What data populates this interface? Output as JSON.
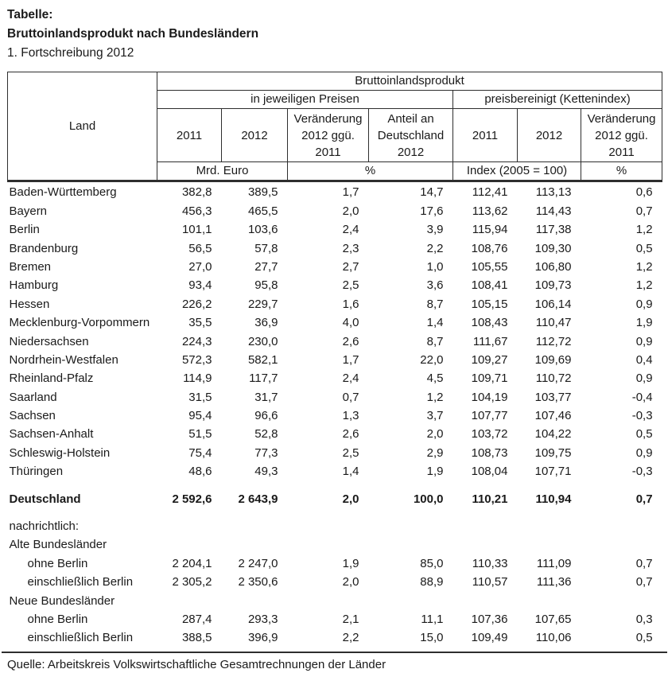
{
  "page": {
    "title_label": "Tabelle:",
    "title": "Bruttoinlandsprodukt nach Bundesländern",
    "subtitle": "1. Fortschreibung 2012",
    "source": "Quelle: Arbeitskreis Volkswirtschaftliche Gesamtrechnungen der Länder"
  },
  "table": {
    "header": {
      "land": "Land",
      "group": "Bruttoinlandsprodukt",
      "subgroup_left": "in jeweiligen Preisen",
      "subgroup_right": "preisbereinigt (Kettenindex)",
      "cols": [
        "2011",
        "2012",
        "Veränderung 2012 ggü. 2011",
        "Anteil an Deutschland 2012",
        "2011",
        "2012",
        "Veränderung 2012 ggü. 2011"
      ],
      "units": [
        "Mrd.  Euro",
        "%",
        "Index (2005 = 100)",
        "%"
      ]
    },
    "rows": [
      {
        "label": "Baden-Württemberg",
        "values": [
          "382,8",
          "389,5",
          "1,7",
          "14,7",
          "112,41",
          "113,13",
          "0,6"
        ]
      },
      {
        "label": "Bayern",
        "values": [
          "456,3",
          "465,5",
          "2,0",
          "17,6",
          "113,62",
          "114,43",
          "0,7"
        ]
      },
      {
        "label": "Berlin",
        "values": [
          "101,1",
          "103,6",
          "2,4",
          "3,9",
          "115,94",
          "117,38",
          "1,2"
        ]
      },
      {
        "label": "Brandenburg",
        "values": [
          "56,5",
          "57,8",
          "2,3",
          "2,2",
          "108,76",
          "109,30",
          "0,5"
        ]
      },
      {
        "label": "Bremen",
        "values": [
          "27,0",
          "27,7",
          "2,7",
          "1,0",
          "105,55",
          "106,80",
          "1,2"
        ]
      },
      {
        "label": "Hamburg",
        "values": [
          "93,4",
          "95,8",
          "2,5",
          "3,6",
          "108,41",
          "109,73",
          "1,2"
        ]
      },
      {
        "label": "Hessen",
        "values": [
          "226,2",
          "229,7",
          "1,6",
          "8,7",
          "105,15",
          "106,14",
          "0,9"
        ]
      },
      {
        "label": "Mecklenburg-Vorpommern",
        "values": [
          "35,5",
          "36,9",
          "4,0",
          "1,4",
          "108,43",
          "110,47",
          "1,9"
        ]
      },
      {
        "label": "Niedersachsen",
        "values": [
          "224,3",
          "230,0",
          "2,6",
          "8,7",
          "111,67",
          "112,72",
          "0,9"
        ]
      },
      {
        "label": "Nordrhein-Westfalen",
        "values": [
          "572,3",
          "582,1",
          "1,7",
          "22,0",
          "109,27",
          "109,69",
          "0,4"
        ]
      },
      {
        "label": "Rheinland-Pfalz",
        "values": [
          "114,9",
          "117,7",
          "2,4",
          "4,5",
          "109,71",
          "110,72",
          "0,9"
        ]
      },
      {
        "label": "Saarland",
        "values": [
          "31,5",
          "31,7",
          "0,7",
          "1,2",
          "104,19",
          "103,77",
          "-0,4"
        ]
      },
      {
        "label": "Sachsen",
        "values": [
          "95,4",
          "96,6",
          "1,3",
          "3,7",
          "107,77",
          "107,46",
          "-0,3"
        ]
      },
      {
        "label": "Sachsen-Anhalt",
        "values": [
          "51,5",
          "52,8",
          "2,6",
          "2,0",
          "103,72",
          "104,22",
          "0,5"
        ]
      },
      {
        "label": "Schleswig-Holstein",
        "values": [
          "75,4",
          "77,3",
          "2,5",
          "2,9",
          "108,73",
          "109,75",
          "0,9"
        ]
      },
      {
        "label": "Thüringen",
        "values": [
          "48,6",
          "49,3",
          "1,4",
          "1,9",
          "108,04",
          "107,71",
          "-0,3"
        ]
      },
      {
        "label": "Deutschland",
        "values": [
          "2 592,6",
          "2 643,9",
          "2,0",
          "100,0",
          "110,21",
          "110,94",
          "0,7"
        ],
        "bold": true,
        "gap": true
      },
      {
        "label": "nachrichtlich:",
        "values": [],
        "gap": true
      },
      {
        "label": "Alte Bundesländer",
        "values": []
      },
      {
        "label": "ohne Berlin",
        "values": [
          "2 204,1",
          "2 247,0",
          "1,9",
          "85,0",
          "110,33",
          "111,09",
          "0,7"
        ],
        "indent": true
      },
      {
        "label": "einschließlich Berlin",
        "values": [
          "2 305,2",
          "2 350,6",
          "2,0",
          "88,9",
          "110,57",
          "111,36",
          "0,7"
        ],
        "indent": true
      },
      {
        "label": "Neue Bundesländer",
        "values": []
      },
      {
        "label": "ohne Berlin",
        "values": [
          "287,4",
          "293,3",
          "2,1",
          "11,1",
          "107,36",
          "107,65",
          "0,3"
        ],
        "indent": true
      },
      {
        "label": "einschließlich Berlin",
        "values": [
          "388,5",
          "396,9",
          "2,2",
          "15,0",
          "109,49",
          "110,06",
          "0,5"
        ],
        "indent": true
      }
    ]
  }
}
